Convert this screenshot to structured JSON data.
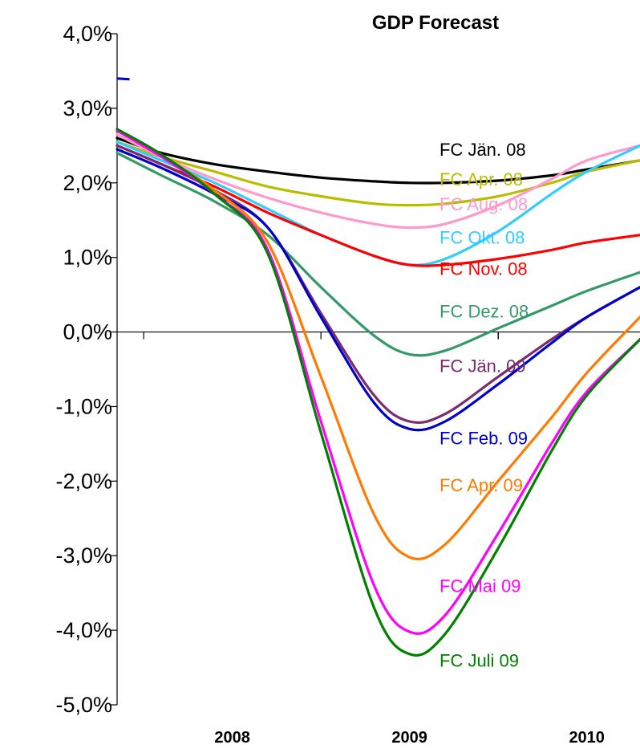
{
  "chart_data": {
    "type": "line",
    "title": "GDP Forecast",
    "xlabel": "",
    "ylabel": "",
    "ylim": [
      -5,
      4
    ],
    "xlim": [
      2007.35,
      2010.3
    ],
    "y_ticks": [
      4,
      3,
      2,
      1,
      0,
      -1,
      -2,
      -3,
      -4,
      -5
    ],
    "y_tick_labels": [
      "4,0%",
      "3,0%",
      "2,0%",
      "1,0%",
      "0,0%",
      "-1,0%",
      "-2,0%",
      "-3,0%",
      "-4,0%",
      "-5,0%"
    ],
    "x_ticks": [
      2008,
      2009,
      2010
    ],
    "x_tick_labels": [
      "2008",
      "2009",
      "2010"
    ],
    "grid": false,
    "legend": "inline labels",
    "fragment": {
      "color": "#0000cc",
      "x": [
        2007.35,
        2007.42
      ],
      "values": [
        3.4,
        3.39
      ]
    },
    "series": [
      {
        "name": "FC Jän. 08",
        "color": "#000000",
        "label_y": 2.45,
        "x": [
          2007.35,
          2007.6,
          2007.9,
          2008.2,
          2008.5,
          2008.8,
          2009.0,
          2009.2,
          2009.5,
          2009.8,
          2010.0,
          2010.3
        ],
        "values": [
          2.6,
          2.4,
          2.25,
          2.15,
          2.07,
          2.02,
          2.0,
          2.0,
          2.03,
          2.1,
          2.18,
          2.3
        ]
      },
      {
        "name": "FC Apr. 08",
        "color": "#bbbb00",
        "label_y": 2.05,
        "x": [
          2007.35,
          2007.6,
          2007.9,
          2008.2,
          2008.5,
          2008.8,
          2009.0,
          2009.2,
          2009.5,
          2009.8,
          2010.0,
          2010.3
        ],
        "values": [
          2.55,
          2.35,
          2.15,
          1.95,
          1.82,
          1.72,
          1.7,
          1.72,
          1.82,
          2.0,
          2.15,
          2.3
        ]
      },
      {
        "name": "FC Aug. 08",
        "color": "#ff99cc",
        "label_y": 1.72,
        "x": [
          2007.35,
          2007.6,
          2007.9,
          2008.2,
          2008.5,
          2008.8,
          2009.0,
          2009.2,
          2009.5,
          2009.8,
          2010.0,
          2010.3
        ],
        "values": [
          2.65,
          2.35,
          2.05,
          1.8,
          1.6,
          1.45,
          1.4,
          1.45,
          1.7,
          2.05,
          2.3,
          2.5
        ]
      },
      {
        "name": "FC Okt. 08",
        "color": "#33ccff",
        "label_y": 1.27,
        "x": [
          2007.35,
          2007.6,
          2007.9,
          2008.2,
          2008.5,
          2008.8,
          2009.0,
          2009.2,
          2009.5,
          2009.8,
          2010.0,
          2010.3
        ],
        "values": [
          2.55,
          2.3,
          2.0,
          1.65,
          1.3,
          1.02,
          0.9,
          0.98,
          1.35,
          1.85,
          2.15,
          2.5
        ]
      },
      {
        "name": "FC Nov. 08",
        "color": "#ff0000",
        "label_y": 0.85,
        "x": [
          2007.35,
          2007.6,
          2007.9,
          2008.2,
          2008.5,
          2008.8,
          2009.0,
          2009.2,
          2009.5,
          2009.8,
          2010.0,
          2010.3
        ],
        "values": [
          2.5,
          2.25,
          1.95,
          1.6,
          1.3,
          1.02,
          0.9,
          0.9,
          0.98,
          1.1,
          1.2,
          1.3
        ]
      },
      {
        "name": "FC Dez. 08",
        "color": "#339966",
        "label_y": 0.28,
        "x": [
          2007.35,
          2007.6,
          2007.9,
          2008.2,
          2008.5,
          2008.8,
          2009.0,
          2009.2,
          2009.5,
          2009.8,
          2010.0,
          2010.3
        ],
        "values": [
          2.4,
          2.1,
          1.75,
          1.3,
          0.6,
          -0.05,
          -0.3,
          -0.25,
          0.05,
          0.35,
          0.55,
          0.8
        ]
      },
      {
        "name": "FC Jän. 09",
        "color": "#7b2c6e",
        "label_y": -0.45,
        "x": [
          2007.35,
          2007.6,
          2007.9,
          2008.2,
          2008.5,
          2008.8,
          2009.0,
          2009.2,
          2009.5,
          2009.8,
          2010.0,
          2010.3
        ],
        "values": [
          2.5,
          2.25,
          1.9,
          1.4,
          0.25,
          -0.85,
          -1.2,
          -1.1,
          -0.6,
          -0.1,
          0.2,
          0.6
        ]
      },
      {
        "name": "FC Feb. 09",
        "color": "#0000cc",
        "label_y": -1.42,
        "x": [
          2007.35,
          2007.6,
          2007.9,
          2008.2,
          2008.5,
          2008.8,
          2009.0,
          2009.2,
          2009.5,
          2009.8,
          2010.0,
          2010.3
        ],
        "values": [
          2.45,
          2.2,
          1.85,
          1.4,
          0.2,
          -0.95,
          -1.3,
          -1.2,
          -0.7,
          -0.15,
          0.2,
          0.6
        ]
      },
      {
        "name": "FC Apr. 09",
        "color": "#ff7a00",
        "label_y": -2.05,
        "x": [
          2007.35,
          2007.6,
          2007.9,
          2008.2,
          2008.5,
          2008.8,
          2009.0,
          2009.2,
          2009.5,
          2009.8,
          2010.0,
          2010.3
        ],
        "values": [
          2.7,
          2.35,
          1.9,
          1.2,
          -0.6,
          -2.45,
          -3.02,
          -2.85,
          -2.0,
          -1.15,
          -0.55,
          0.2
        ]
      },
      {
        "name": "FC Mai 09",
        "color": "#ff00ff",
        "label_y": -3.4,
        "x": [
          2007.35,
          2007.6,
          2007.9,
          2008.2,
          2008.5,
          2008.8,
          2009.0,
          2009.2,
          2009.5,
          2009.8,
          2010.0,
          2010.3
        ],
        "values": [
          2.7,
          2.35,
          1.85,
          1.1,
          -1.2,
          -3.4,
          -4.02,
          -3.8,
          -2.7,
          -1.5,
          -0.8,
          -0.1
        ]
      },
      {
        "name": "FC Juli 09",
        "color": "#008000",
        "label_y": -4.4,
        "x": [
          2007.35,
          2007.6,
          2007.9,
          2008.2,
          2008.5,
          2008.8,
          2009.0,
          2009.2,
          2009.5,
          2009.8,
          2010.0,
          2010.3
        ],
        "values": [
          2.72,
          2.38,
          1.85,
          1.05,
          -1.35,
          -3.7,
          -4.32,
          -4.05,
          -2.9,
          -1.6,
          -0.85,
          -0.1
        ]
      }
    ]
  }
}
